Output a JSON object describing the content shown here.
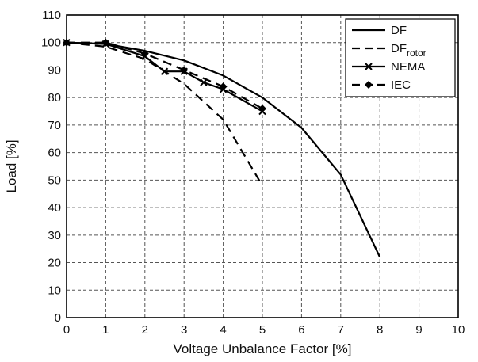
{
  "chart_data": {
    "type": "line",
    "xlabel": "Voltage Unbalance Factor [%]",
    "ylabel": "Load [%]",
    "xlim": [
      0,
      10
    ],
    "ylim": [
      0,
      110
    ],
    "xticks": [
      0,
      1,
      2,
      3,
      4,
      5,
      6,
      7,
      8,
      9,
      10
    ],
    "yticks": [
      0,
      10,
      20,
      30,
      40,
      50,
      60,
      70,
      80,
      90,
      100,
      110
    ],
    "grid": true,
    "legend_position": "top-right",
    "series": [
      {
        "name": "DF",
        "style": "solid",
        "marker": "none",
        "x": [
          0,
          1,
          2,
          3,
          4,
          5,
          6,
          7,
          8
        ],
        "y": [
          100,
          99.5,
          97,
          93.5,
          88,
          80,
          69,
          52,
          22
        ]
      },
      {
        "name": "DF",
        "name_sub": "rotor",
        "style": "dashed",
        "marker": "none",
        "x": [
          0,
          1,
          2,
          3,
          4,
          5
        ],
        "y": [
          100,
          98.5,
          94,
          85,
          72,
          48
        ]
      },
      {
        "name": "NEMA",
        "style": "solid",
        "marker": "x",
        "x": [
          0,
          1,
          2,
          2.5,
          3,
          3.5,
          4,
          5
        ],
        "y": [
          100,
          99.5,
          95,
          89.5,
          89.5,
          85.5,
          83,
          75
        ]
      },
      {
        "name": "IEC",
        "style": "dashed",
        "marker": "diamond",
        "x": [
          0,
          1,
          2,
          3,
          4,
          5
        ],
        "y": [
          100,
          100,
          96,
          90,
          84,
          76
        ]
      }
    ],
    "colors": {
      "line": "#000000",
      "grid": "#555555",
      "background": "#ffffff"
    }
  }
}
